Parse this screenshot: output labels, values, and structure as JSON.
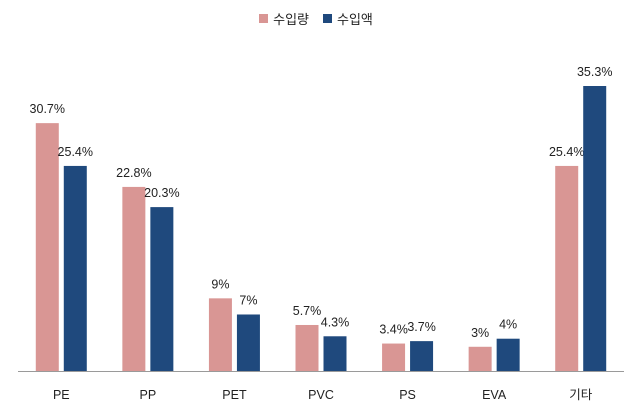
{
  "chart_data": {
    "type": "bar",
    "categories": [
      "PE",
      "PP",
      "PET",
      "PVC",
      "PS",
      "EVA",
      "기타"
    ],
    "series": [
      {
        "name": "수입량",
        "color": "#D99694",
        "values": [
          30.7,
          22.8,
          9,
          5.7,
          3.4,
          3,
          25.4
        ],
        "labels": [
          "30.7%",
          "22.8%",
          "9%",
          "5.7%",
          "3.4%",
          "3%",
          "25.4%"
        ]
      },
      {
        "name": "수입액",
        "color": "#1F497D",
        "values": [
          25.4,
          20.3,
          7,
          4.3,
          3.7,
          4,
          35.3
        ],
        "labels": [
          "25.4%",
          "20.3%",
          "7%",
          "4.3%",
          "3.7%",
          "4%",
          "35.3%"
        ]
      }
    ],
    "legend_position": "top-center",
    "grid": false,
    "ylim": [
      0,
      37
    ]
  }
}
